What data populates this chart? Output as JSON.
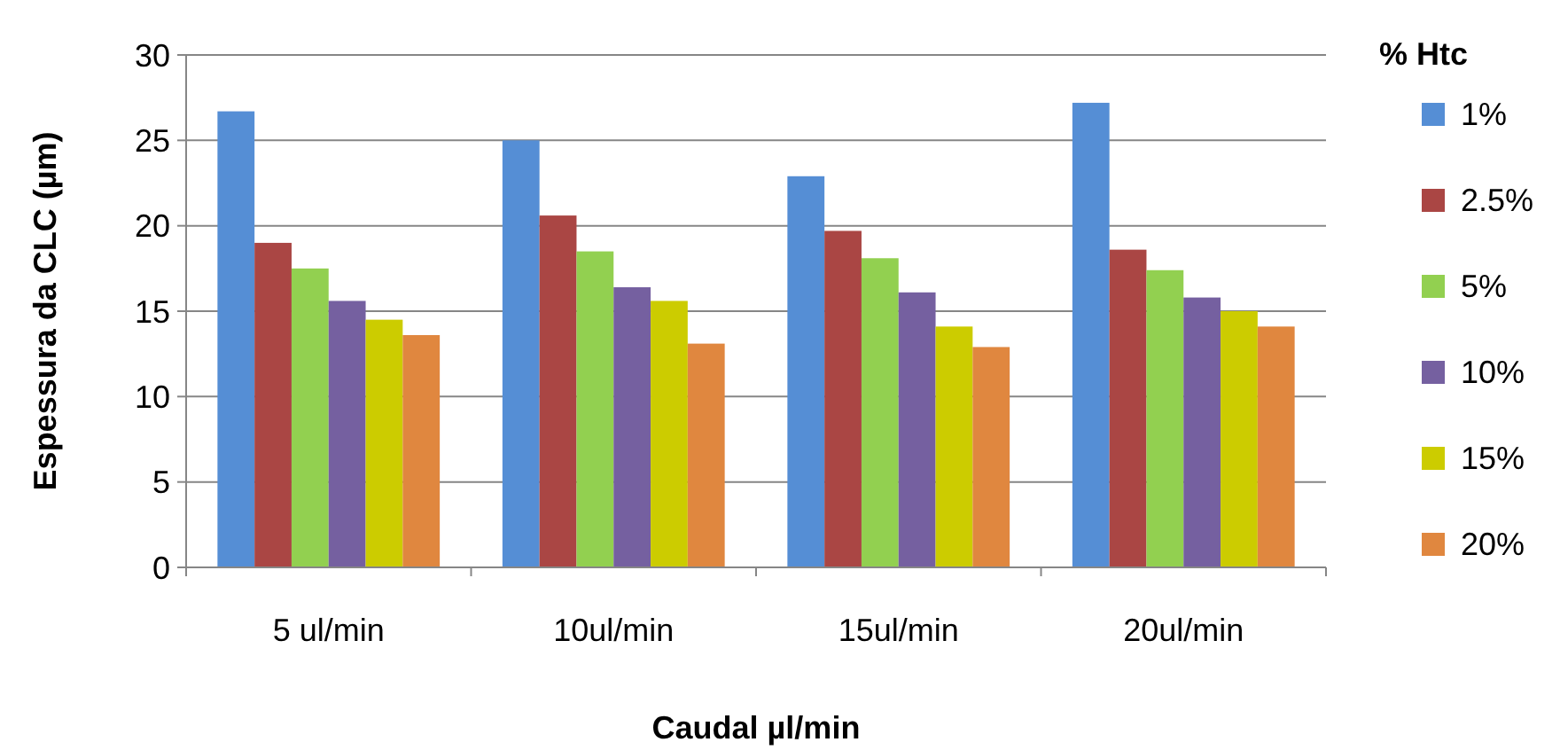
{
  "chart_data": {
    "type": "bar",
    "xlabel": "Caudal µl/min",
    "ylabel": "Espessura da CLC (µm)",
    "legend_title": "% Htc",
    "categories": [
      "5 ul/min",
      "10ul/min",
      "15ul/min",
      "20ul/min"
    ],
    "series": [
      {
        "name": "1%",
        "color": "#558ed5",
        "values": [
          26.7,
          25.0,
          22.9,
          27.2
        ]
      },
      {
        "name": "2.5%",
        "color": "#aa4644",
        "values": [
          19.0,
          20.6,
          19.7,
          18.6
        ]
      },
      {
        "name": "5%",
        "color": "#92d050",
        "values": [
          17.5,
          18.5,
          18.1,
          17.4
        ]
      },
      {
        "name": "10%",
        "color": "#7560a0",
        "values": [
          15.6,
          16.4,
          16.1,
          15.8
        ]
      },
      {
        "name": "15%",
        "color": "#cccc00",
        "values": [
          14.5,
          15.6,
          14.1,
          15.0
        ]
      },
      {
        "name": "20%",
        "color": "#e0873f",
        "values": [
          13.6,
          13.1,
          12.9,
          14.1
        ]
      }
    ],
    "ylim": [
      0,
      30
    ],
    "yticks": [
      0,
      5,
      10,
      15,
      20,
      25,
      30
    ],
    "grid": "y",
    "legend": "right"
  }
}
